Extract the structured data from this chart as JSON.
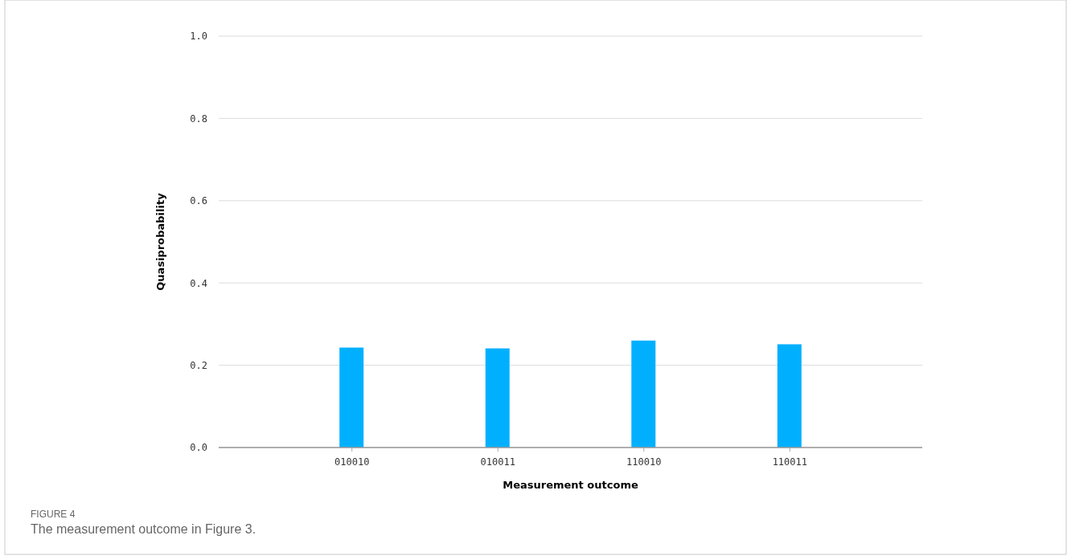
{
  "chart_data": {
    "type": "bar",
    "xlabel": "Measurement outcome",
    "ylabel": "Quasiprobability",
    "categories": [
      "010010",
      "010011",
      "110010",
      "110011"
    ],
    "values": [
      0.243,
      0.241,
      0.26,
      0.251
    ],
    "color": "#00b0ff",
    "ylim": [
      0,
      1
    ],
    "yticks": [
      {
        "value": 0,
        "label": "0.0"
      },
      {
        "value": 0.2,
        "label": "0.2"
      },
      {
        "value": 0.4,
        "label": "0.4"
      },
      {
        "value": 0.6,
        "label": "0.6"
      },
      {
        "value": 0.8,
        "label": "0.8"
      },
      {
        "value": 1,
        "label": "1.0"
      }
    ],
    "grid": "y",
    "annotations": [
      "FIGURE 4",
      "The measurement outcome in Figure 3."
    ]
  }
}
